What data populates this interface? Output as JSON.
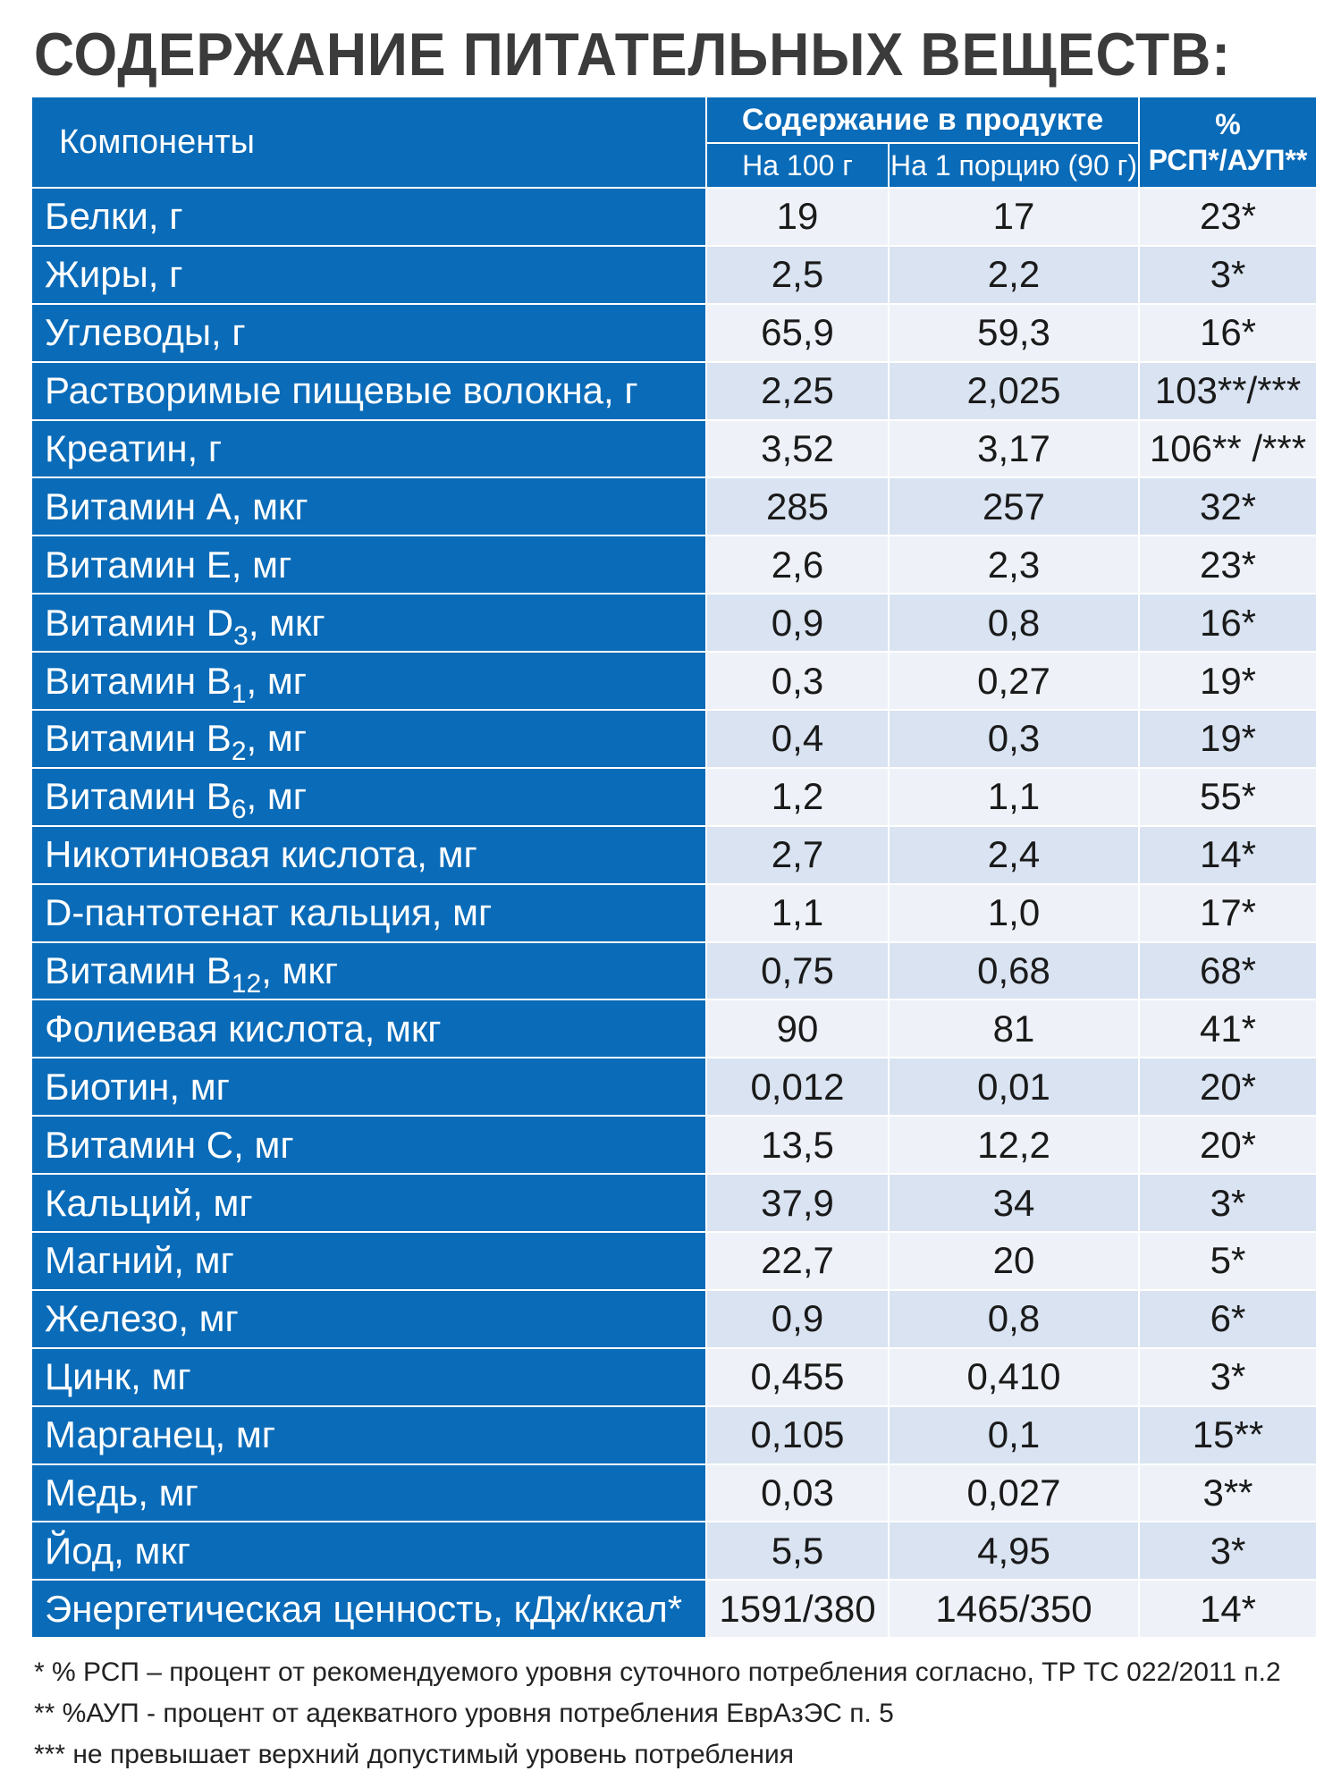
{
  "title": "СОДЕРЖАНИЕ ПИТАТЕЛЬНЫХ ВЕЩЕСТВ:",
  "header": {
    "components": "Компоненты",
    "content_group": "Содержание в продукте",
    "per100": "На 100 г",
    "perServing": "На 1 порцию (90 г)",
    "pct_line1": "%",
    "pct_line2": "РСП*/АУП**"
  },
  "rows": [
    {
      "name": "Белки, г",
      "per100": "19",
      "serving": "17",
      "pct": "23*"
    },
    {
      "name": "Жиры, г",
      "per100": "2,5",
      "serving": "2,2",
      "pct": "3*"
    },
    {
      "name": "Углеводы, г",
      "per100": "65,9",
      "serving": "59,3",
      "pct": "16*"
    },
    {
      "name": "Растворимые пищевые волокна, г",
      "per100": "2,25",
      "serving": "2,025",
      "pct": "103**/***"
    },
    {
      "name": "Креатин, г",
      "per100": "3,52",
      "serving": "3,17",
      "pct": "106** /***"
    },
    {
      "name": "Витамин А, мкг",
      "per100": "285",
      "serving": "257",
      "pct": "32*"
    },
    {
      "name": "Витамин Е, мг",
      "per100": "2,6",
      "serving": "2,3",
      "pct": "23*"
    },
    {
      "name_pre": "Витамин D",
      "name_sub": "3",
      "name_post": ", мкг",
      "per100": "0,9",
      "serving": "0,8",
      "pct": "16*"
    },
    {
      "name_pre": "Витамин В",
      "name_sub": "1",
      "name_post": ", мг",
      "per100": "0,3",
      "serving": "0,27",
      "pct": "19*"
    },
    {
      "name_pre": "Витамин В",
      "name_sub": "2",
      "name_post": ", мг",
      "per100": "0,4",
      "serving": "0,3",
      "pct": "19*"
    },
    {
      "name_pre": "Витамин В",
      "name_sub": "6",
      "name_post": ", мг",
      "per100": "1,2",
      "serving": "1,1",
      "pct": "55*"
    },
    {
      "name": "Никотиновая кислота, мг",
      "per100": "2,7",
      "serving": "2,4",
      "pct": "14*"
    },
    {
      "name": "D-пантотенат кальция, мг",
      "per100": "1,1",
      "serving": "1,0",
      "pct": "17*"
    },
    {
      "name_pre": "Витамин В",
      "name_sub": "12",
      "name_post": ", мкг",
      "per100": "0,75",
      "serving": "0,68",
      "pct": "68*"
    },
    {
      "name": "Фолиевая кислота, мкг",
      "per100": "90",
      "serving": "81",
      "pct": "41*"
    },
    {
      "name": "Биотин, мг",
      "per100": "0,012",
      "serving": "0,01",
      "pct": "20*"
    },
    {
      "name": "Витамин С, мг",
      "per100": "13,5",
      "serving": "12,2",
      "pct": "20*"
    },
    {
      "name": "Кальций, мг",
      "per100": "37,9",
      "serving": "34",
      "pct": "3*"
    },
    {
      "name": "Магний, мг",
      "per100": "22,7",
      "serving": "20",
      "pct": "5*"
    },
    {
      "name": "Железо, мг",
      "per100": "0,9",
      "serving": "0,8",
      "pct": "6*"
    },
    {
      "name": "Цинк, мг",
      "per100": "0,455",
      "serving": "0,410",
      "pct": "3*"
    },
    {
      "name": "Марганец, мг",
      "per100": "0,105",
      "serving": "0,1",
      "pct": "15**"
    },
    {
      "name": "Медь, мг",
      "per100": "0,03",
      "serving": "0,027",
      "pct": "3**"
    },
    {
      "name": "Йод, мкг",
      "per100": "5,5",
      "serving": "4,95",
      "pct": "3*"
    },
    {
      "name": "Энергетическая ценность, кДж/ккал*",
      "per100": "1591/380",
      "serving": "1465/350",
      "pct": "14*"
    }
  ],
  "footnotes": [
    "* % РСП – процент от рекомендуемого уровня суточного потребления согласно, ТР ТС 022/2011 п.2",
    "** %АУП - процент от адекватного уровня потребления ЕврАзЭС п. 5",
    "*** не превышает верхний допустимый уровень потребления"
  ],
  "colors": {
    "header_blue": "#0a6bb8",
    "row_light": "#eef2f8",
    "row_dark": "#d9e3f1",
    "title_gray": "#3b3b3b"
  }
}
